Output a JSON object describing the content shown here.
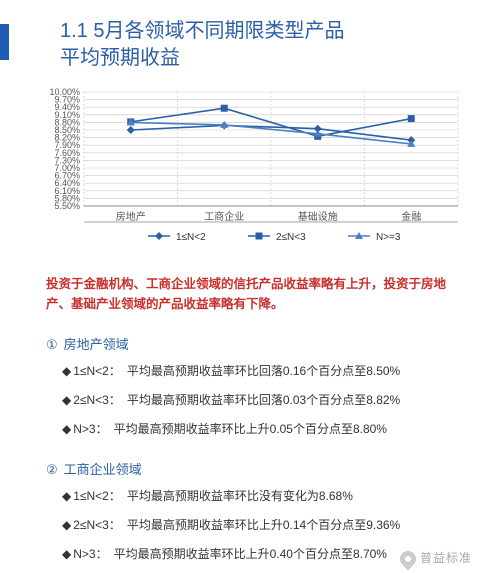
{
  "title_line1": "1.1  5月各领域不同期限类型产品",
  "title_line2": "平均预期收益",
  "chart": {
    "type": "line",
    "categories": [
      "房地产",
      "工商企业",
      "基础设施",
      "金融"
    ],
    "y_ticks": [
      "5.50%",
      "5.80%",
      "6.10%",
      "6.40%",
      "6.70%",
      "7.00%",
      "7.30%",
      "7.60%",
      "7.90%",
      "8.20%",
      "8.50%",
      "8.80%",
      "9.10%",
      "9.40%",
      "9.70%",
      "10.00%"
    ],
    "ylim": [
      5.5,
      10.0
    ],
    "series": [
      {
        "name": "1≤N<2",
        "values": [
          8.5,
          8.68,
          8.55,
          8.1
        ],
        "color": "#2a5fa5",
        "marker": "diamond"
      },
      {
        "name": "2≤N<3",
        "values": [
          8.82,
          9.36,
          8.25,
          8.95
        ],
        "color": "#2a5fa5",
        "marker": "square"
      },
      {
        "name": "N>=3",
        "values": [
          8.8,
          8.7,
          8.35,
          7.95
        ],
        "color": "#4a81c4",
        "marker": "triangle"
      }
    ],
    "grid_color": "#c9c9c9",
    "background": "#ffffff",
    "axis_fontsize": 9
  },
  "highlight": "投资于金融机构、工商企业领域的信托产品收益率略有上升，投资于房地产、基础产业领域的产品收益率略有下降。",
  "sections": [
    {
      "num": "①",
      "title": "房地产领域",
      "items": [
        {
          "tag": "1≤N<2：",
          "text": "平均最高预期收益率环比回落0.16个百分点至8.50%"
        },
        {
          "tag": "2≤N<3：",
          "text": "平均最高预期收益率环比回落0.03个百分点至8.82%"
        },
        {
          "tag": "N>3：",
          "text": "平均最高预期收益率环比上升0.05个百分点至8.80%"
        }
      ]
    },
    {
      "num": "②",
      "title": "工商企业领域",
      "items": [
        {
          "tag": "1≤N<2：",
          "text": "平均最高预期收益率环比没有变化为8.68%"
        },
        {
          "tag": "2≤N<3：",
          "text": "平均最高预期收益率环比上升0.14个百分点至9.36%"
        },
        {
          "tag": "N>3：",
          "text": "平均最高预期收益率环比上升0.40个百分点至8.70%"
        }
      ]
    }
  ],
  "watermark": "普益标准"
}
